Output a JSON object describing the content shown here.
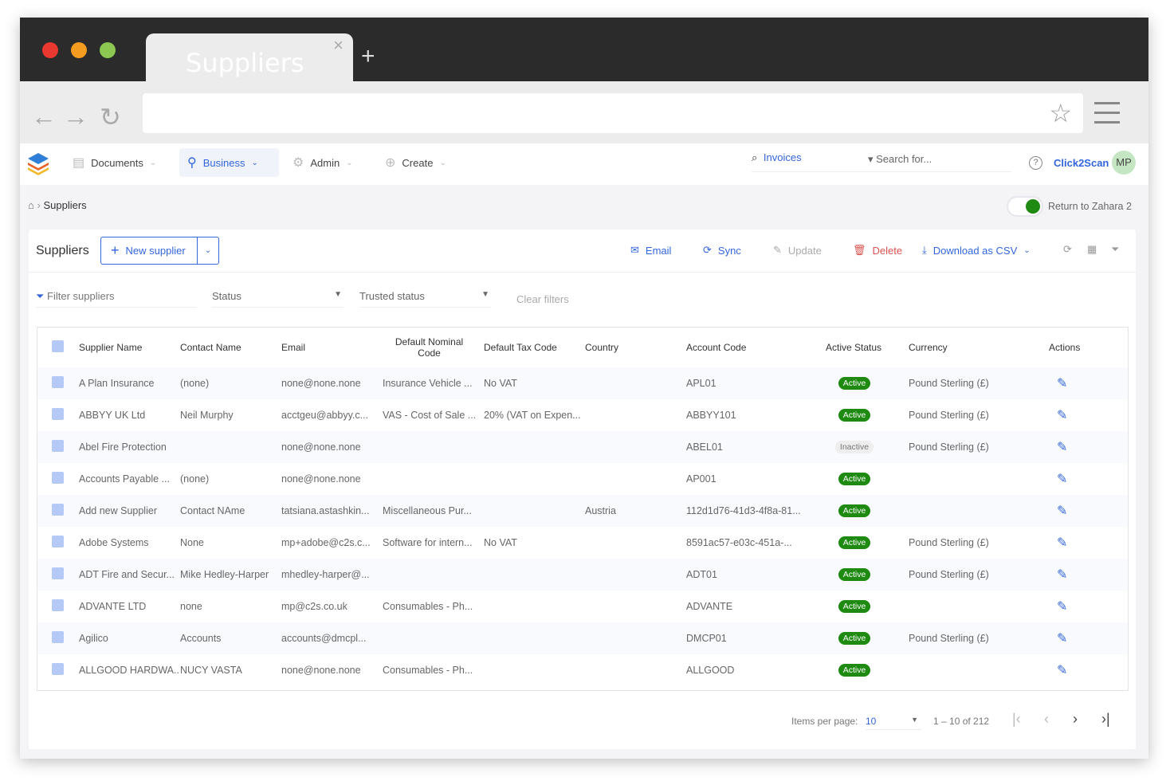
{
  "browser": {
    "tab_title": "Suppliers",
    "close_glyph": "×",
    "new_tab_glyph": "+",
    "back_icon": "arrow-left",
    "forward_icon": "arrow-right",
    "reload_icon": "reload",
    "url": ""
  },
  "nav": {
    "items": [
      {
        "label": "Documents",
        "icon": "document-icon"
      },
      {
        "label": "Business",
        "icon": "business-icon",
        "active": true
      },
      {
        "label": "Admin",
        "icon": "gear-icon"
      },
      {
        "label": "Create",
        "icon": "plus-circle-icon"
      }
    ],
    "search_scope": "Invoices",
    "search_placeholder": "Search for...",
    "org": "Click2Scan",
    "avatar": "MP"
  },
  "breadcrumb": {
    "current": "Suppliers"
  },
  "toggle": {
    "label": "Return to Zahara 2",
    "on": true
  },
  "panel": {
    "title": "Suppliers",
    "new_label": "New supplier",
    "email": "Email",
    "sync": "Sync",
    "update": "Update",
    "delete": "Delete",
    "download": "Download as CSV"
  },
  "filters": {
    "filter_placeholder": "Filter suppliers",
    "status": "Status",
    "trusted": "Trusted status",
    "clear": "Clear filters"
  },
  "columns": [
    "Supplier Name",
    "Contact Name",
    "Email",
    "Default Nominal Code",
    "Default Tax Code",
    "Country",
    "Account Code",
    "Active Status",
    "Currency",
    "Actions"
  ],
  "rows": [
    [
      "A Plan Insurance",
      "(none)",
      "none@none.none",
      "Insurance Vehicle ...",
      "No VAT",
      "",
      "APL01",
      "Active",
      "Pound Sterling (£)"
    ],
    [
      "ABBYY UK Ltd",
      "Neil Murphy",
      "acctgeu@abbyy.c...",
      "VAS - Cost of Sale ...",
      "20% (VAT on Expen...",
      "",
      "ABBYY101",
      "Active",
      "Pound Sterling (£)"
    ],
    [
      "Abel Fire Protection",
      "",
      "none@none.none",
      "",
      "",
      "",
      "ABEL01",
      "Inactive",
      "Pound Sterling (£)"
    ],
    [
      "Accounts Payable ...",
      "(none)",
      "none@none.none",
      "",
      "",
      "",
      "AP001",
      "Active",
      ""
    ],
    [
      "Add new Supplier",
      "Contact NAme",
      "tatsiana.astashkin...",
      "Miscellaneous Pur...",
      "",
      "Austria",
      "112d1d76-41d3-4f8a-81...",
      "Active",
      ""
    ],
    [
      "Adobe Systems",
      "None",
      "mp+adobe@c2s.c...",
      "Software for intern...",
      "No VAT",
      "",
      "8591ac57-e03c-451a-...",
      "Active",
      "Pound Sterling (£)"
    ],
    [
      "ADT Fire and Secur...",
      "Mike Hedley-Harper",
      "mhedley-harper@...",
      "",
      "",
      "",
      "ADT01",
      "Active",
      "Pound Sterling (£)"
    ],
    [
      "ADVANTE LTD",
      "none",
      "mp@c2s.co.uk",
      "Consumables - Ph...",
      "",
      "",
      "ADVANTE",
      "Active",
      ""
    ],
    [
      "Agilico",
      "Accounts",
      "accounts@dmcpl...",
      "",
      "",
      "",
      "DMCP01",
      "Active",
      "Pound Sterling (£)"
    ],
    [
      "ALLGOOD HARDWA...",
      "NUCY VASTA",
      "none@none.none",
      "Consumables - Ph...",
      "",
      "",
      "ALLGOOD",
      "Active",
      ""
    ]
  ],
  "pagination": {
    "items_per_page_label": "Items per page:",
    "items_per_page": "10",
    "range": "1 – 10 of 212"
  },
  "colors": {
    "accent": "#3366dd",
    "active": "#1e8a12",
    "delete": "#d9534f"
  }
}
